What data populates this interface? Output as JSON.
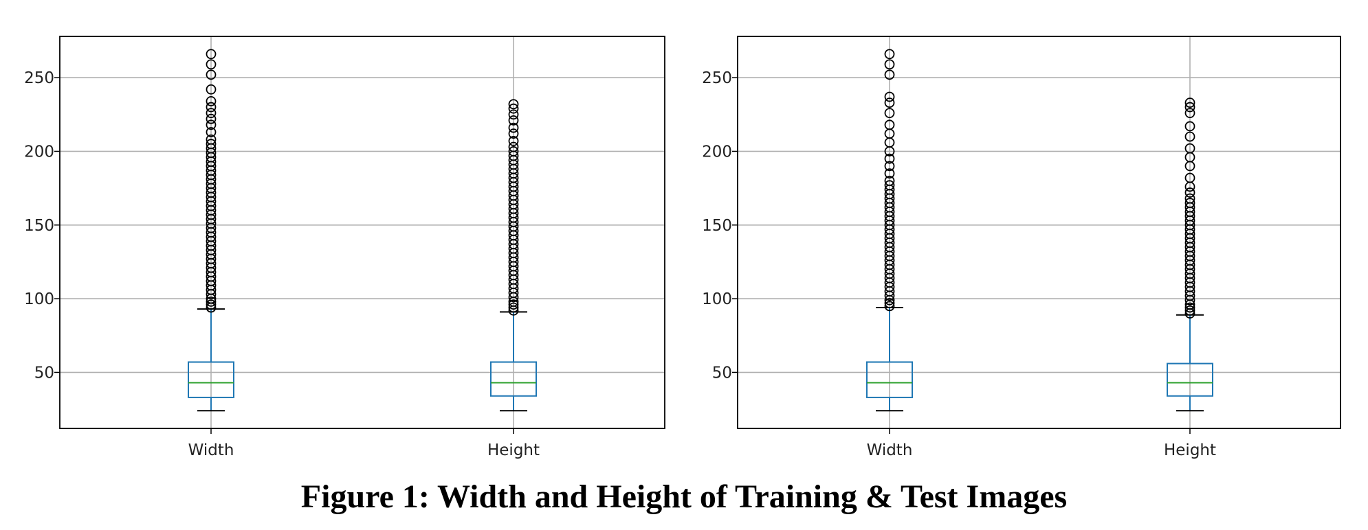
{
  "caption": "Figure 1: Width and Height of Training & Test Images",
  "chart_data": [
    {
      "type": "boxplot",
      "ylim": [
        12,
        278
      ],
      "yticks": [
        50,
        100,
        150,
        200,
        250
      ],
      "grid": true,
      "categories": [
        "Width",
        "Height"
      ],
      "boxes": [
        {
          "category": "Width",
          "whisker_low": 24,
          "q1": 33,
          "median": 43,
          "q3": 57,
          "whisker_high": 93,
          "outliers": [
            94,
            96,
            98,
            100,
            103,
            106,
            109,
            112,
            115,
            118,
            121,
            124,
            127,
            130,
            133,
            136,
            139,
            142,
            145,
            148,
            151,
            154,
            157,
            160,
            163,
            166,
            169,
            172,
            175,
            178,
            181,
            184,
            187,
            190,
            193,
            196,
            199,
            202,
            205,
            208,
            213,
            218,
            222,
            226,
            230,
            234,
            242,
            252,
            259,
            266
          ]
        },
        {
          "category": "Height",
          "whisker_low": 24,
          "q1": 34,
          "median": 43,
          "q3": 57,
          "whisker_high": 91,
          "outliers": [
            92,
            94,
            96,
            98,
            101,
            104,
            107,
            110,
            113,
            116,
            119,
            122,
            125,
            128,
            131,
            134,
            137,
            140,
            143,
            146,
            149,
            152,
            155,
            158,
            161,
            164,
            167,
            170,
            173,
            176,
            179,
            182,
            185,
            188,
            191,
            194,
            197,
            200,
            203,
            207,
            212,
            216,
            221,
            225,
            229,
            232
          ]
        }
      ]
    },
    {
      "type": "boxplot",
      "ylim": [
        12,
        278
      ],
      "yticks": [
        50,
        100,
        150,
        200,
        250
      ],
      "grid": true,
      "categories": [
        "Width",
        "Height"
      ],
      "boxes": [
        {
          "category": "Width",
          "whisker_low": 24,
          "q1": 33,
          "median": 43,
          "q3": 57,
          "whisker_high": 94,
          "outliers": [
            95,
            97,
            99,
            102,
            105,
            108,
            111,
            114,
            117,
            120,
            123,
            126,
            129,
            132,
            135,
            138,
            141,
            144,
            147,
            150,
            153,
            156,
            159,
            162,
            165,
            168,
            171,
            174,
            177,
            180,
            185,
            190,
            195,
            200,
            206,
            212,
            218,
            226,
            233,
            237,
            252,
            259,
            266
          ]
        },
        {
          "category": "Height",
          "whisker_low": 24,
          "q1": 34,
          "median": 43,
          "q3": 56,
          "whisker_high": 89,
          "outliers": [
            90,
            92,
            94,
            96,
            99,
            102,
            105,
            108,
            111,
            114,
            117,
            120,
            123,
            126,
            129,
            132,
            135,
            138,
            141,
            144,
            147,
            150,
            153,
            156,
            159,
            162,
            165,
            168,
            172,
            176,
            182,
            190,
            196,
            202,
            210,
            217,
            226,
            230,
            233
          ]
        }
      ]
    }
  ]
}
